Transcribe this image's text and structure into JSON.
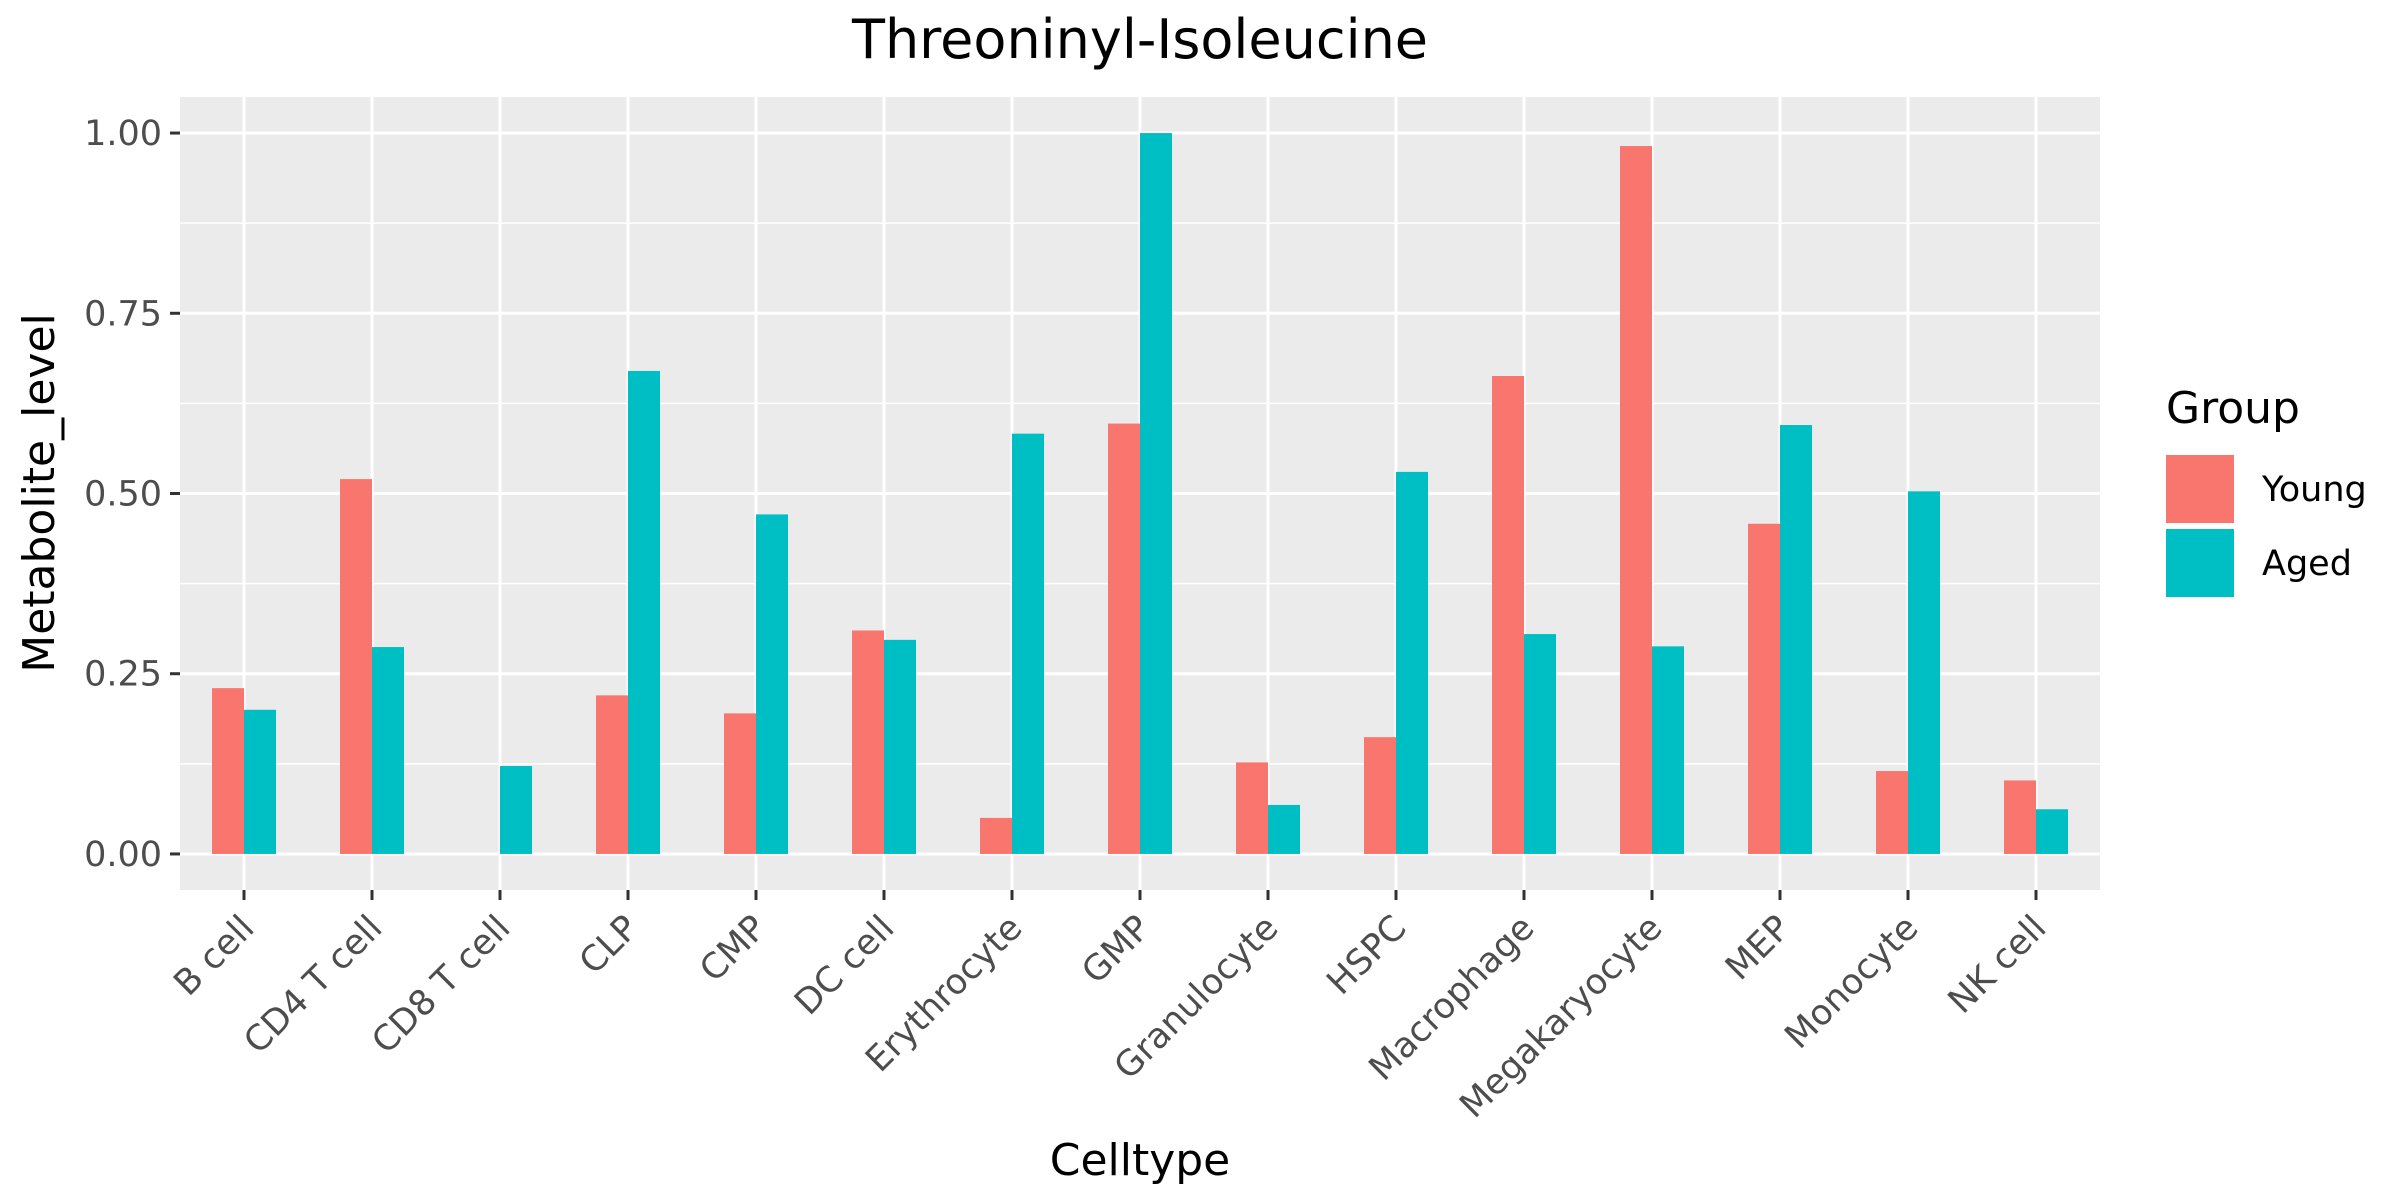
{
  "chart_data": {
    "type": "bar",
    "title": "Threoninyl-Isoleucine",
    "xlabel": "Celltype",
    "ylabel": "Metabolite_level",
    "categories": [
      "B cell",
      "CD4 T cell",
      "CD8 T cell",
      "CLP",
      "CMP",
      "DC cell",
      "Erythrocyte",
      "GMP",
      "Granulocyte",
      "HSPC",
      "Macrophage",
      "Megakaryocyte",
      "MEP",
      "Monocyte",
      "NK cell"
    ],
    "series": [
      {
        "name": "Young",
        "color": "#F8766D",
        "values": [
          0.23,
          0.52,
          0.0,
          0.22,
          0.195,
          0.31,
          0.05,
          0.597,
          0.127,
          0.162,
          0.663,
          0.982,
          0.458,
          0.115,
          0.102
        ]
      },
      {
        "name": "Aged",
        "color": "#00BFC4",
        "values": [
          0.2,
          0.287,
          0.122,
          0.67,
          0.471,
          0.297,
          0.583,
          1.0,
          0.068,
          0.53,
          0.305,
          0.288,
          0.595,
          0.503,
          0.062
        ]
      }
    ],
    "ylim": [
      -0.05,
      1.05
    ],
    "yticks": [
      0.0,
      0.25,
      0.5,
      0.75,
      1.0
    ],
    "ytick_labels": [
      "0.00",
      "0.25",
      "0.50",
      "0.75",
      "1.00"
    ],
    "legend": {
      "title": "Group",
      "position": "right"
    },
    "grid": true,
    "panel_background": "#EBEBEB"
  }
}
